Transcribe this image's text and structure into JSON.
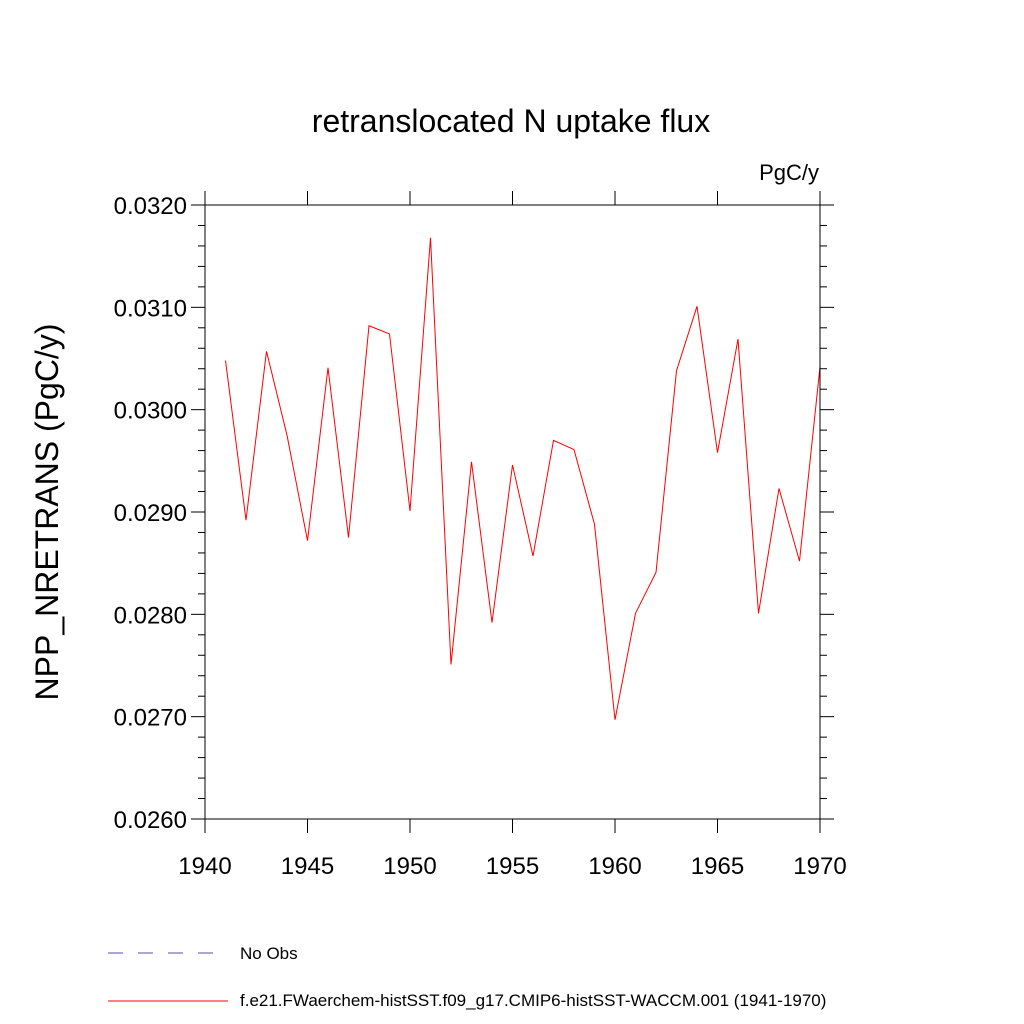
{
  "chart_data": {
    "type": "line",
    "title": "retranslocated N uptake flux",
    "units": "PgC/y",
    "xlabel": "",
    "ylabel": "NPP_NRETRANS  (PgC/y)",
    "xlim": [
      1940,
      1970
    ],
    "ylim": [
      0.026,
      0.032
    ],
    "x_ticks": [
      1940,
      1945,
      1950,
      1955,
      1960,
      1965,
      1970
    ],
    "x_tick_labels": [
      "1940",
      "1945",
      "1950",
      "1955",
      "1960",
      "1965",
      "1970"
    ],
    "y_ticks": [
      0.026,
      0.027,
      0.028,
      0.029,
      0.03,
      0.031,
      0.032
    ],
    "y_tick_labels": [
      "0.0260",
      "0.0270",
      "0.0280",
      "0.0290",
      "0.0300",
      "0.0310",
      "0.0320"
    ],
    "grid": false,
    "legend_position": "bottom",
    "x": [
      1941,
      1942,
      1943,
      1944,
      1945,
      1946,
      1947,
      1948,
      1949,
      1950,
      1951,
      1952,
      1953,
      1954,
      1955,
      1956,
      1957,
      1958,
      1959,
      1960,
      1961,
      1962,
      1963,
      1964,
      1965,
      1966,
      1967,
      1968,
      1969,
      1970
    ],
    "series": [
      {
        "name": "f.e21.FWaerchem-histSST.f09_g17.CMIP6-histSST-WACCM.001 (1941-1970)",
        "color": "#ff0000",
        "style": "solid",
        "values": [
          0.03048,
          0.02892,
          0.03057,
          0.02975,
          0.02872,
          0.03041,
          0.02875,
          0.03082,
          0.03074,
          0.02901,
          0.03168,
          0.02751,
          0.02949,
          0.02792,
          0.02946,
          0.02857,
          0.0297,
          0.02961,
          0.02888,
          0.02697,
          0.02801,
          0.02841,
          0.03038,
          0.03101,
          0.02958,
          0.03069,
          0.02801,
          0.02923,
          0.02852,
          0.03042
        ]
      }
    ],
    "legend": [
      {
        "label": "No Obs",
        "color": "#5b4ea6",
        "style": "dashed"
      },
      {
        "label": "f.e21.FWaerchem-histSST.f09_g17.CMIP6-histSST-WACCM.001 (1941-1970)",
        "color": "#ff0000",
        "style": "solid"
      }
    ]
  }
}
